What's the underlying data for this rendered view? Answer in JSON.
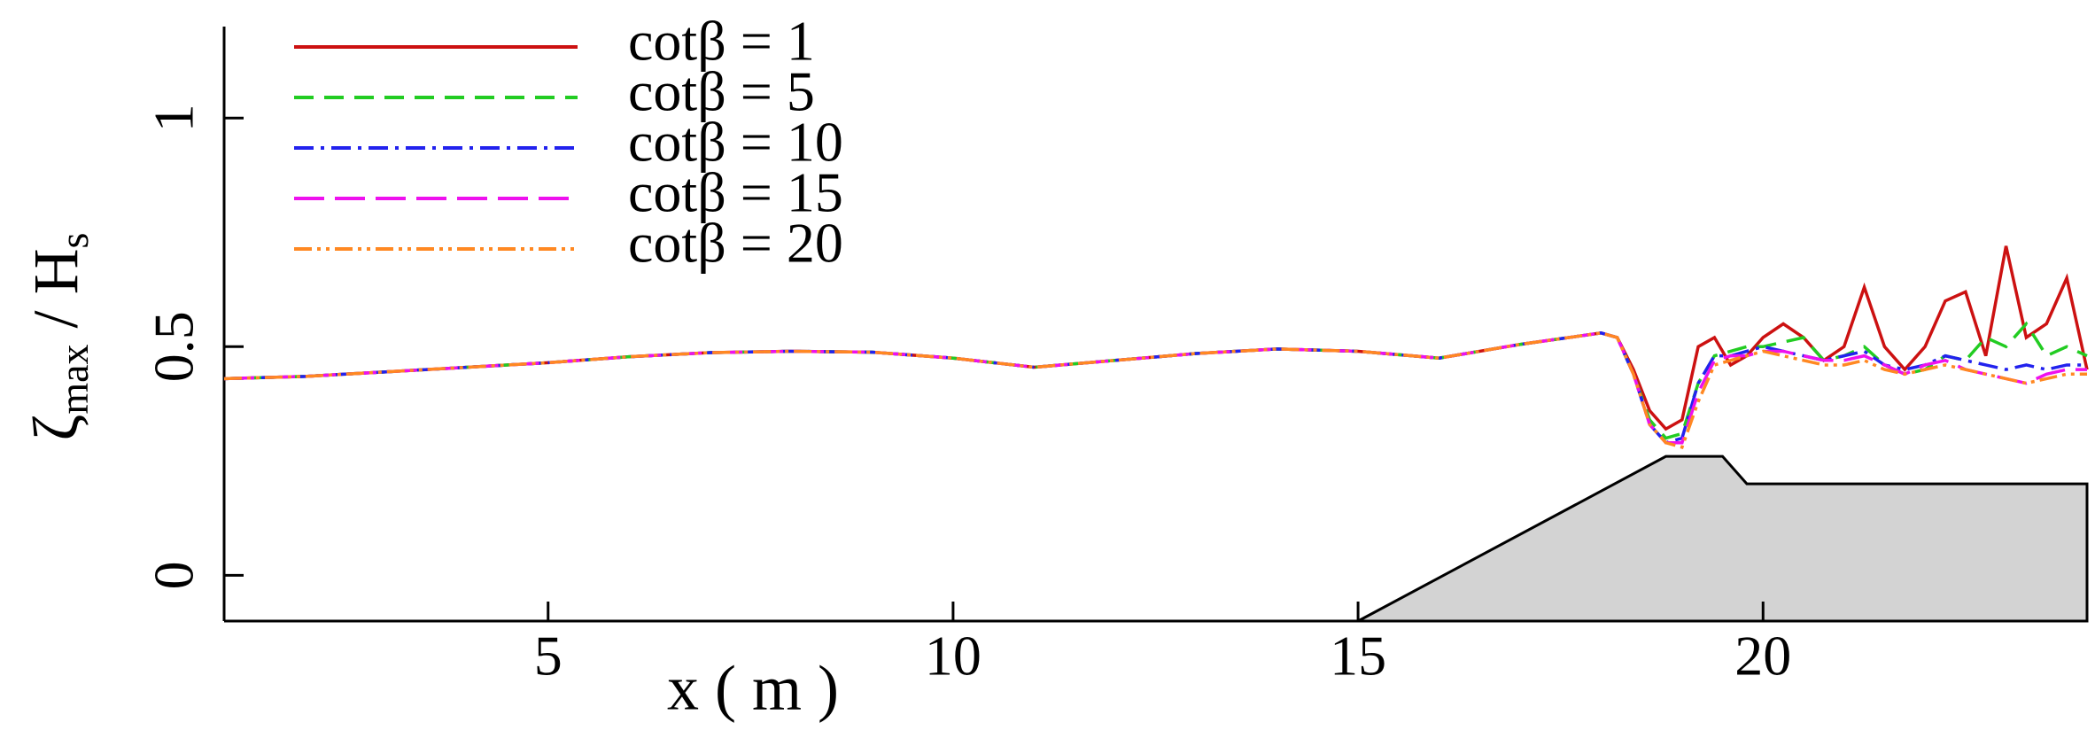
{
  "chart_data": {
    "type": "line",
    "xlabel": "x ( m )",
    "ylabel": {
      "main": "ζ",
      "sub": "max",
      "over": " / H",
      "over_sub": "s"
    },
    "xlim": [
      1,
      24
    ],
    "ylim": [
      -0.1,
      1.2
    ],
    "xticks": [
      5,
      10,
      15,
      20
    ],
    "yticks": [
      0,
      0.5,
      1
    ],
    "legend": "top-left",
    "x": [
      1,
      2,
      3,
      4,
      5,
      6,
      7,
      8,
      9,
      10,
      11,
      12,
      13,
      14,
      15,
      16,
      17,
      18,
      18.2,
      18.4,
      18.6,
      18.8,
      19.0,
      19.2,
      19.4,
      19.6,
      19.8,
      20.0,
      20.25,
      20.5,
      20.75,
      21,
      21.25,
      21.5,
      21.75,
      22,
      22.25,
      22.5,
      22.75,
      23,
      23.25,
      23.5,
      23.75,
      24
    ],
    "series": [
      {
        "name": "cotβ = 1",
        "color": "#cc1111",
        "line_style": "solid",
        "values": [
          0.43,
          0.435,
          0.445,
          0.455,
          0.465,
          0.478,
          0.487,
          0.49,
          0.488,
          0.475,
          0.455,
          0.47,
          0.485,
          0.495,
          0.49,
          0.475,
          0.505,
          0.53,
          0.52,
          0.45,
          0.36,
          0.32,
          0.34,
          0.5,
          0.52,
          0.46,
          0.48,
          0.52,
          0.55,
          0.52,
          0.47,
          0.5,
          0.63,
          0.5,
          0.45,
          0.5,
          0.6,
          0.62,
          0.48,
          0.72,
          0.52,
          0.55,
          0.65,
          0.45
        ]
      },
      {
        "name": "cotβ = 5",
        "color": "#22cc22",
        "line_style": "dashed",
        "values": [
          0.43,
          0.435,
          0.445,
          0.455,
          0.465,
          0.478,
          0.487,
          0.49,
          0.488,
          0.475,
          0.455,
          0.47,
          0.485,
          0.495,
          0.49,
          0.475,
          0.505,
          0.53,
          0.52,
          0.44,
          0.34,
          0.3,
          0.31,
          0.42,
          0.48,
          0.49,
          0.5,
          0.5,
          0.51,
          0.52,
          0.47,
          0.48,
          0.5,
          0.46,
          0.44,
          0.45,
          0.48,
          0.47,
          0.52,
          0.5,
          0.55,
          0.48,
          0.5,
          0.48
        ]
      },
      {
        "name": "cotβ = 10",
        "color": "#2222ee",
        "line_style": "dashdot",
        "values": [
          0.43,
          0.435,
          0.445,
          0.455,
          0.465,
          0.478,
          0.487,
          0.49,
          0.488,
          0.475,
          0.455,
          0.47,
          0.485,
          0.495,
          0.49,
          0.475,
          0.505,
          0.53,
          0.52,
          0.44,
          0.33,
          0.29,
          0.3,
          0.42,
          0.48,
          0.48,
          0.49,
          0.5,
          0.49,
          0.48,
          0.47,
          0.48,
          0.49,
          0.46,
          0.45,
          0.46,
          0.48,
          0.47,
          0.46,
          0.45,
          0.46,
          0.45,
          0.46,
          0.46
        ]
      },
      {
        "name": "cotβ = 15",
        "color": "#ee11ee",
        "line_style": "longdash",
        "values": [
          0.43,
          0.435,
          0.445,
          0.455,
          0.465,
          0.478,
          0.487,
          0.49,
          0.488,
          0.475,
          0.455,
          0.47,
          0.485,
          0.495,
          0.49,
          0.475,
          0.505,
          0.53,
          0.52,
          0.44,
          0.33,
          0.29,
          0.29,
          0.4,
          0.47,
          0.48,
          0.48,
          0.49,
          0.49,
          0.48,
          0.47,
          0.47,
          0.48,
          0.46,
          0.44,
          0.46,
          0.47,
          0.45,
          0.44,
          0.43,
          0.42,
          0.44,
          0.45,
          0.45
        ]
      },
      {
        "name": "cotβ = 20",
        "color": "#ff8822",
        "line_style": "dashdotdot",
        "values": [
          0.43,
          0.435,
          0.445,
          0.455,
          0.465,
          0.478,
          0.487,
          0.49,
          0.488,
          0.475,
          0.455,
          0.47,
          0.485,
          0.495,
          0.49,
          0.475,
          0.505,
          0.53,
          0.52,
          0.44,
          0.33,
          0.29,
          0.28,
          0.38,
          0.46,
          0.47,
          0.48,
          0.49,
          0.48,
          0.47,
          0.46,
          0.46,
          0.47,
          0.45,
          0.44,
          0.45,
          0.46,
          0.45,
          0.44,
          0.43,
          0.42,
          0.43,
          0.44,
          0.44
        ]
      }
    ],
    "profile": {
      "x": [
        15,
        18.8,
        19.5,
        19.8,
        24
      ],
      "y": [
        -0.1,
        0.26,
        0.26,
        0.2,
        0.2
      ],
      "color": "#d3d3d3"
    }
  }
}
